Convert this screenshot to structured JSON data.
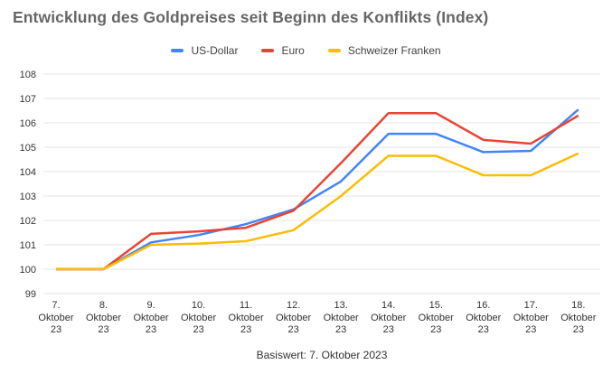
{
  "chart_data": {
    "type": "line",
    "title": "Entwicklung des Goldpreises seit Beginn des Konflikts (Index)",
    "baseline_note": "Basiswert: 7. Oktober 2023",
    "categories": [
      "7. Oktober 23",
      "8. Oktober 23",
      "9. Oktober 23",
      "10. Oktober 23",
      "11. Oktober 23",
      "12. Oktober 23",
      "13. Oktober 23",
      "14. Oktober 23",
      "15. Oktober 23",
      "16. Oktober 23",
      "17. Oktober 23",
      "18. Oktober 23"
    ],
    "category_lines": [
      [
        "7.",
        "Oktober",
        "23"
      ],
      [
        "8.",
        "Oktober",
        "23"
      ],
      [
        "9.",
        "Oktober",
        "23"
      ],
      [
        "10.",
        "Oktober",
        "23"
      ],
      [
        "11.",
        "Oktober",
        "23"
      ],
      [
        "12.",
        "Oktober",
        "23"
      ],
      [
        "13.",
        "Oktober",
        "23"
      ],
      [
        "14.",
        "Oktober",
        "23"
      ],
      [
        "15.",
        "Oktober",
        "23"
      ],
      [
        "16.",
        "Oktober",
        "23"
      ],
      [
        "17.",
        "Oktober",
        "23"
      ],
      [
        "18.",
        "Oktober",
        "23"
      ]
    ],
    "series": [
      {
        "name": "US-Dollar",
        "color": "#4285F4",
        "values": [
          100,
          100,
          101.1,
          101.4,
          101.85,
          102.45,
          103.6,
          105.55,
          105.55,
          104.8,
          104.85,
          106.55
        ]
      },
      {
        "name": "Euro",
        "color": "#EA4335",
        "values": [
          100,
          100,
          101.45,
          101.55,
          101.7,
          102.4,
          104.35,
          106.4,
          106.4,
          105.3,
          105.15,
          106.3
        ]
      },
      {
        "name": "Schweizer Franken",
        "color": "#FBBC04",
        "values": [
          100,
          100,
          101.0,
          101.05,
          101.15,
          101.6,
          103.0,
          104.65,
          104.65,
          103.85,
          103.85,
          104.75
        ]
      }
    ],
    "yticks": [
      99,
      100,
      101,
      102,
      103,
      104,
      105,
      106,
      107,
      108
    ],
    "ylim": [
      99,
      108
    ],
    "xlabel": "",
    "ylabel": "",
    "grid": true,
    "legend_position": "top"
  },
  "colors": {
    "background": "#ffffff",
    "gridline": "#e6e6e6",
    "tick_label": "#333333",
    "title": "#666666",
    "legend_label": "#424242"
  }
}
